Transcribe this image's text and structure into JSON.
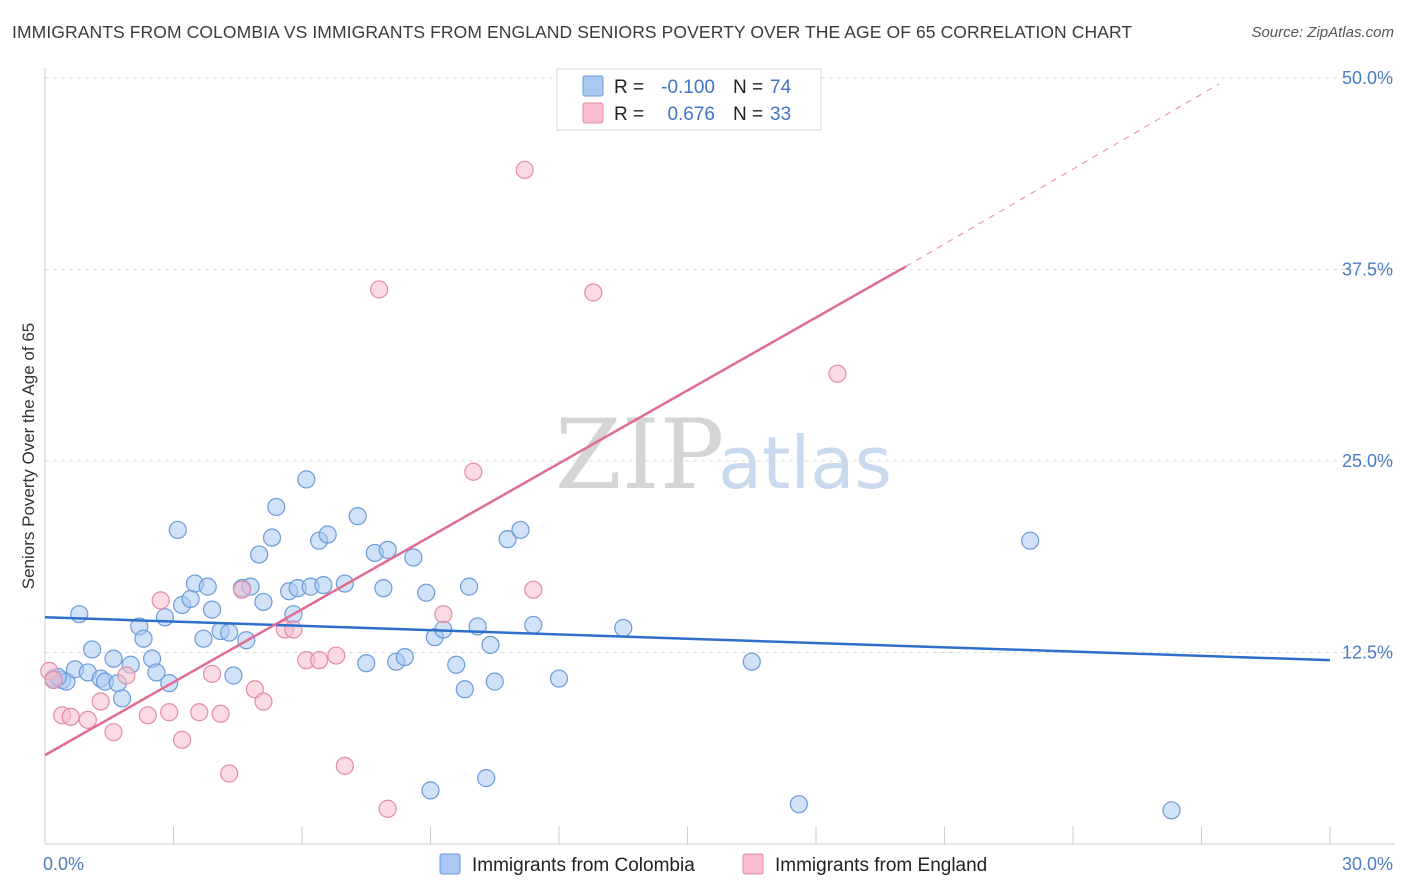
{
  "title": "IMMIGRANTS FROM COLOMBIA VS IMMIGRANTS FROM ENGLAND SENIORS POVERTY OVER THE AGE OF 65 CORRELATION CHART",
  "source": "Source: ZipAtlas.com",
  "watermark": {
    "zip": "ZIP",
    "atlas": "atlas"
  },
  "colors": {
    "colombia_fill": "#a9c8f2",
    "colombia_stroke": "#6b9bd9",
    "colombia_line": "#2f6fcc",
    "england_fill": "#f7bccd",
    "england_stroke": "#e48ba6",
    "england_line": "#e06b93",
    "grid": "#dddddd",
    "tick_label": "#4a7cc4"
  },
  "legend": {
    "rows": [
      {
        "r_label": "R =",
        "r_value": "-0.100",
        "n_label": "N =",
        "n_value": "74",
        "series": "colombia"
      },
      {
        "r_label": "R =",
        "r_value": "0.676",
        "n_label": "N =",
        "n_value": "33",
        "series": "england"
      }
    ]
  },
  "chart_data": {
    "type": "scatter",
    "xlabel": "",
    "ylabel": "Seniors Poverty Over the Age of 65",
    "xlim": [
      0,
      30
    ],
    "ylim": [
      0,
      50
    ],
    "x_tick_labels": [
      "0.0%",
      "30.0%"
    ],
    "y_ticks": [
      12.5,
      25.0,
      37.5,
      50.0
    ],
    "y_tick_labels": [
      "12.5%",
      "25.0%",
      "37.5%",
      "50.0%"
    ],
    "grid": "horizontal dashed",
    "legend_position": "top-center",
    "series": [
      {
        "name": "Immigrants from Colombia",
        "color": "#a9c8f2",
        "trend": {
          "x": [
            0,
            30
          ],
          "y": [
            14.8,
            12.0
          ]
        },
        "points": [
          [
            0.2,
            10.8
          ],
          [
            0.4,
            10.7
          ],
          [
            0.5,
            10.6
          ],
          [
            0.7,
            11.4
          ],
          [
            0.8,
            15.0
          ],
          [
            1.0,
            11.2
          ],
          [
            1.1,
            12.7
          ],
          [
            1.3,
            10.8
          ],
          [
            1.4,
            10.6
          ],
          [
            1.6,
            12.1
          ],
          [
            1.7,
            10.5
          ],
          [
            1.8,
            9.5
          ],
          [
            2.0,
            11.7
          ],
          [
            2.2,
            14.2
          ],
          [
            2.3,
            13.4
          ],
          [
            2.5,
            12.1
          ],
          [
            2.6,
            11.2
          ],
          [
            2.8,
            14.8
          ],
          [
            2.9,
            10.5
          ],
          [
            3.1,
            20.5
          ],
          [
            3.2,
            15.6
          ],
          [
            3.4,
            16.0
          ],
          [
            3.5,
            17.0
          ],
          [
            3.7,
            13.4
          ],
          [
            3.8,
            16.8
          ],
          [
            3.9,
            15.3
          ],
          [
            4.1,
            13.9
          ],
          [
            4.3,
            13.8
          ],
          [
            4.4,
            11.0
          ],
          [
            4.6,
            16.7
          ],
          [
            4.7,
            13.3
          ],
          [
            4.8,
            16.8
          ],
          [
            5.0,
            18.9
          ],
          [
            5.1,
            15.8
          ],
          [
            5.3,
            20.0
          ],
          [
            5.4,
            22.0
          ],
          [
            5.7,
            16.5
          ],
          [
            5.8,
            15.0
          ],
          [
            5.9,
            16.7
          ],
          [
            6.1,
            23.8
          ],
          [
            6.2,
            16.8
          ],
          [
            6.4,
            19.8
          ],
          [
            6.5,
            16.9
          ],
          [
            6.6,
            20.2
          ],
          [
            7.0,
            17.0
          ],
          [
            7.3,
            21.4
          ],
          [
            7.5,
            11.8
          ],
          [
            7.7,
            19.0
          ],
          [
            7.9,
            16.7
          ],
          [
            8.0,
            19.2
          ],
          [
            8.2,
            11.9
          ],
          [
            8.4,
            12.2
          ],
          [
            8.6,
            18.7
          ],
          [
            8.9,
            16.4
          ],
          [
            9.1,
            13.5
          ],
          [
            9.3,
            14.0
          ],
          [
            9.6,
            11.7
          ],
          [
            9.8,
            10.1
          ],
          [
            9.9,
            16.8
          ],
          [
            10.1,
            14.2
          ],
          [
            10.4,
            13.0
          ],
          [
            10.5,
            10.6
          ],
          [
            10.8,
            19.9
          ],
          [
            11.1,
            20.5
          ],
          [
            11.4,
            14.3
          ],
          [
            12.0,
            10.8
          ],
          [
            13.5,
            14.1
          ],
          [
            16.5,
            11.9
          ],
          [
            23.0,
            19.8
          ],
          [
            9.0,
            3.5
          ],
          [
            10.3,
            4.3
          ],
          [
            17.6,
            2.6
          ],
          [
            26.3,
            2.2
          ],
          [
            0.3,
            10.9
          ]
        ]
      },
      {
        "name": "Immigrants from England",
        "color": "#f7bccd",
        "trend": {
          "x": [
            0,
            20.1
          ],
          "y": [
            5.8,
            37.7
          ]
        },
        "trend_dashed": {
          "x": [
            20.1,
            27.4
          ],
          "y": [
            37.7,
            49.6
          ]
        },
        "points": [
          [
            0.1,
            11.3
          ],
          [
            0.4,
            8.4
          ],
          [
            0.6,
            8.3
          ],
          [
            1.0,
            8.1
          ],
          [
            1.3,
            9.3
          ],
          [
            1.6,
            7.3
          ],
          [
            1.9,
            11.0
          ],
          [
            2.4,
            8.4
          ],
          [
            2.7,
            15.9
          ],
          [
            2.9,
            8.6
          ],
          [
            3.2,
            6.8
          ],
          [
            3.6,
            8.6
          ],
          [
            3.9,
            11.1
          ],
          [
            4.1,
            8.5
          ],
          [
            4.3,
            4.6
          ],
          [
            4.6,
            16.6
          ],
          [
            4.9,
            10.1
          ],
          [
            5.1,
            9.3
          ],
          [
            5.6,
            14.0
          ],
          [
            5.8,
            14.0
          ],
          [
            6.1,
            12.0
          ],
          [
            6.4,
            12.0
          ],
          [
            6.8,
            12.3
          ],
          [
            7.0,
            5.1
          ],
          [
            7.8,
            36.2
          ],
          [
            8.0,
            2.3
          ],
          [
            9.3,
            15.0
          ],
          [
            10.0,
            24.3
          ],
          [
            11.4,
            16.6
          ],
          [
            11.2,
            44.0
          ],
          [
            12.8,
            36.0
          ],
          [
            18.5,
            30.7
          ],
          [
            0.2,
            10.7
          ]
        ]
      }
    ]
  },
  "bottom_legend": {
    "items": [
      {
        "label": "Immigrants from Colombia",
        "series": "colombia"
      },
      {
        "label": "Immigrants from England",
        "series": "england"
      }
    ]
  }
}
